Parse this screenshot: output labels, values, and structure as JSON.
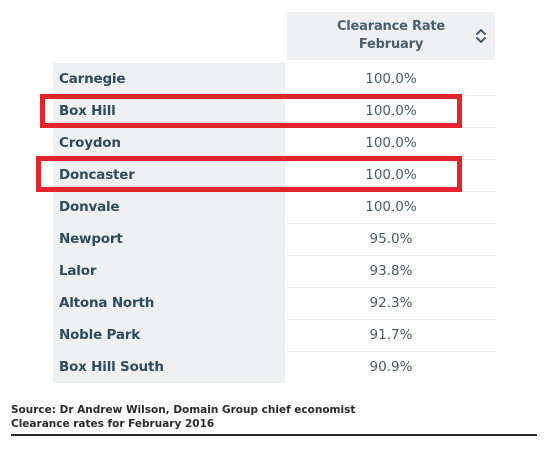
{
  "table": {
    "header": {
      "line1": "Clearance Rate",
      "line2": "February",
      "sort_icon": "sort-updown-icon"
    },
    "rows": [
      {
        "suburb": "Carnegie",
        "rate": "100.0%"
      },
      {
        "suburb": "Box Hill",
        "rate": "100.0%"
      },
      {
        "suburb": "Croydon",
        "rate": "100.0%"
      },
      {
        "suburb": "Doncaster",
        "rate": "100.0%"
      },
      {
        "suburb": "Donvale",
        "rate": "100.0%"
      },
      {
        "suburb": "Newport",
        "rate": "95.0%"
      },
      {
        "suburb": "Lalor",
        "rate": "93.8%"
      },
      {
        "suburb": "Altona North",
        "rate": "92.3%"
      },
      {
        "suburb": "Noble Park",
        "rate": "91.7%"
      },
      {
        "suburb": "Box Hill South",
        "rate": "90.9%"
      }
    ]
  },
  "highlight_color": "#e3252b",
  "footer": {
    "source": "Source: Dr Andrew Wilson, Domain Group chief economist",
    "note": "Clearance rates for February 2016"
  }
}
